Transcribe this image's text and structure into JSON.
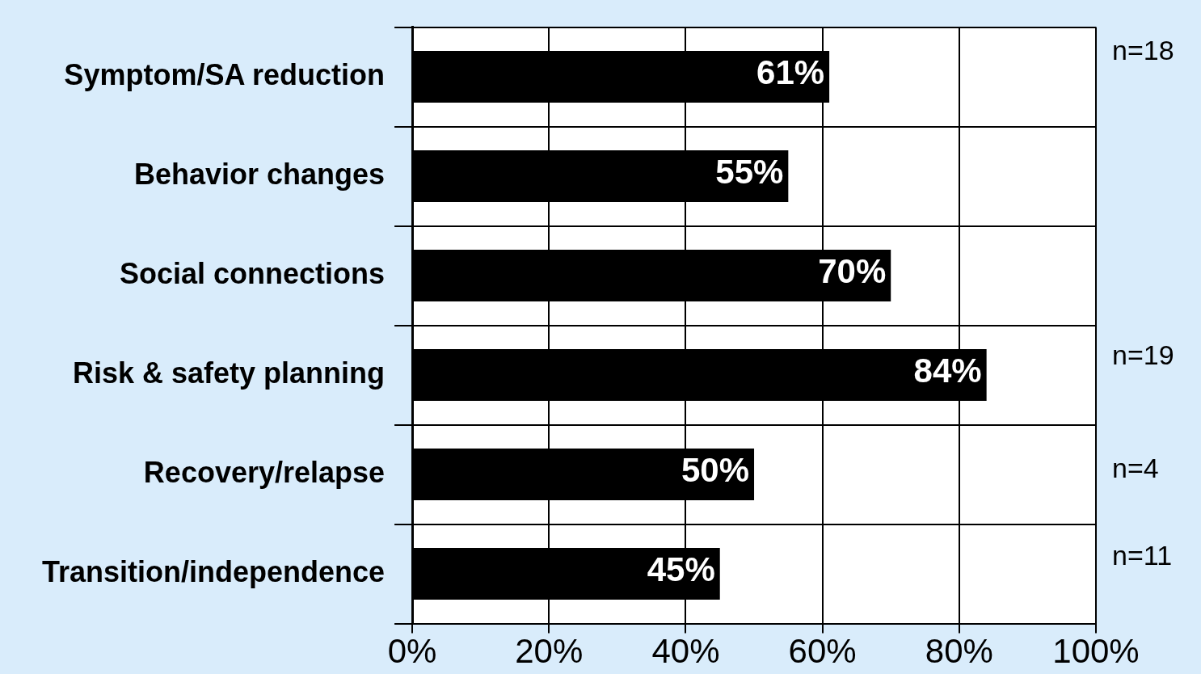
{
  "chart_data": {
    "type": "bar",
    "orientation": "horizontal",
    "categories": [
      "Symptom/SA reduction",
      "Behavior changes",
      "Social connections",
      "Risk & safety planning",
      "Recovery/relapse",
      "Transition/independence"
    ],
    "values": [
      61,
      55,
      70,
      84,
      50,
      45
    ],
    "value_labels": [
      "61%",
      "55%",
      "70%",
      "84%",
      "50%",
      "45%"
    ],
    "color": "#000000",
    "xlim": [
      0,
      100
    ],
    "xticks": [
      {
        "value": 0,
        "label": "0%"
      },
      {
        "value": 20,
        "label": "20%"
      },
      {
        "value": 40,
        "label": "40%"
      },
      {
        "value": 60,
        "label": "60%"
      },
      {
        "value": 80,
        "label": "80%"
      },
      {
        "value": 100,
        "label": "100%"
      }
    ],
    "grid": true,
    "legend": false,
    "annotations": [
      "n=18",
      "n=19",
      "n=4",
      "n=11"
    ]
  }
}
